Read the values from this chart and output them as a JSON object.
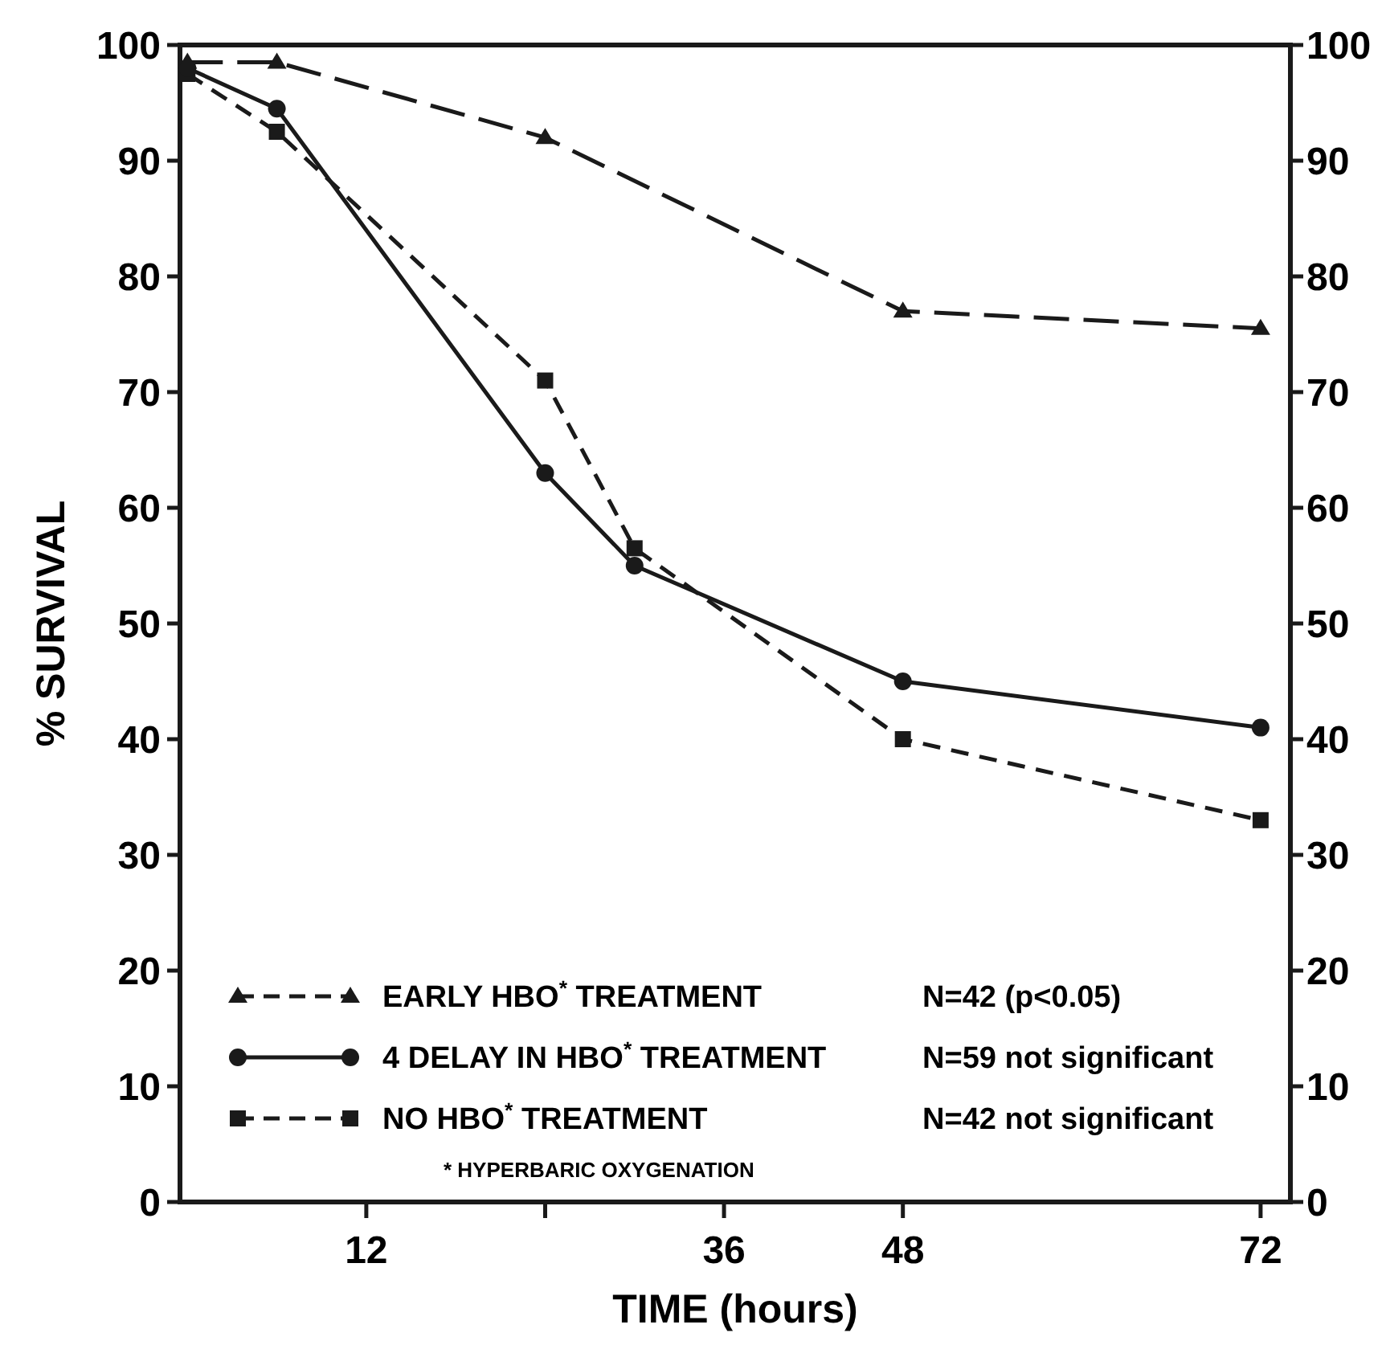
{
  "chart_data": {
    "type": "line",
    "xlabel": "TIME (hours)",
    "ylabel": "% SURVIVAL",
    "x": [
      0,
      6,
      24,
      30,
      48,
      72
    ],
    "series": [
      {
        "name": "EARLY HBO$^{*}$ TREATMENT",
        "color": "#1a1a1a",
        "x": [
          0,
          6,
          24,
          48,
          72
        ],
        "values": [
          98.5,
          98.5,
          92,
          77,
          75.5
        ],
        "marker": "triangle",
        "line_style": "dashed"
      },
      {
        "name": "4 DELAY IN HBO$^{*}$ TREATMENT",
        "color": "#1a1a1a",
        "values": [
          98,
          94.5,
          63,
          55,
          45,
          41
        ],
        "marker": "circle",
        "line_style": "solid"
      },
      {
        "name": "NO HBO$^{*}$ TREATMENT",
        "color": "#1a1a1a",
        "values": [
          97.5,
          92.5,
          71,
          56.5,
          40,
          33
        ],
        "marker": "square",
        "line_style": "dashed"
      }
    ],
    "xlim": [
      -0.5,
      74
    ],
    "xticks": [
      12,
      {
        "value": 24,
        "label": null
      },
      36,
      48,
      72
    ],
    "ylim": [
      0,
      100
    ],
    "yticks": [
      0,
      10,
      20,
      30,
      40,
      50,
      60,
      70,
      80,
      90,
      100
    ],
    "y2lim": [
      0,
      100
    ],
    "y2ticks": [
      0,
      10,
      20,
      30,
      40,
      50,
      60,
      70,
      80,
      90,
      100
    ],
    "legend": "bottom left",
    "grid": false,
    "annotations": [
      "N=42  (p<0.05)",
      "N=59  not significant",
      "N=42 not significant",
      "* HYPERBARIC  OXYGENATION"
    ]
  }
}
